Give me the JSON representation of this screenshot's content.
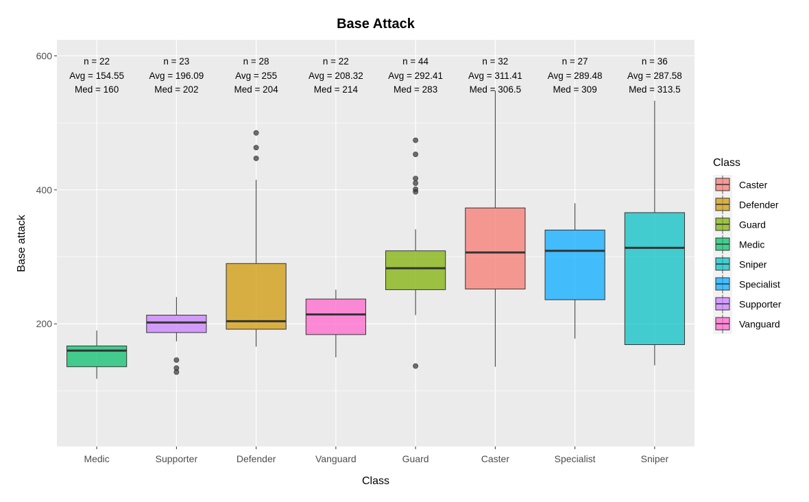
{
  "chart_data": {
    "type": "boxplot",
    "title": "Base Attack",
    "xlabel": "Class",
    "ylabel": "Base attack",
    "ylim": [
      17,
      624
    ],
    "y_ticks": [
      200,
      400,
      600
    ],
    "grid": true,
    "legend": {
      "title": "Class",
      "position": "right",
      "items": [
        "Caster",
        "Defender",
        "Guard",
        "Medic",
        "Sniper",
        "Specialist",
        "Supporter",
        "Vanguard"
      ]
    },
    "colors": {
      "Caster": "#F8766D",
      "Defender": "#CD9600",
      "Guard": "#7CAE00",
      "Medic": "#00BE67",
      "Sniper": "#00BFC4",
      "Specialist": "#00A9FF",
      "Supporter": "#C77CFF",
      "Vanguard": "#FF61CC"
    },
    "categories": [
      "Medic",
      "Supporter",
      "Defender",
      "Vanguard",
      "Guard",
      "Caster",
      "Specialist",
      "Sniper"
    ],
    "boxes": [
      {
        "class": "Medic",
        "n_label": "n = 22",
        "avg_label": "Avg = 154.55",
        "med_label": "Med = 160",
        "whisker_low": 118,
        "q1": 136,
        "median": 160,
        "q3": 167,
        "whisker_high": 190,
        "outliers": []
      },
      {
        "class": "Supporter",
        "n_label": "n = 23",
        "avg_label": "Avg = 196.09",
        "med_label": "Med = 202",
        "whisker_low": 174,
        "q1": 187,
        "median": 202,
        "q3": 213,
        "whisker_high": 240,
        "outliers": [
          146,
          134,
          128
        ]
      },
      {
        "class": "Defender",
        "n_label": "n = 28",
        "avg_label": "Avg = 255",
        "med_label": "Med = 204",
        "whisker_low": 166,
        "q1": 192,
        "median": 204,
        "q3": 290,
        "whisker_high": 415,
        "outliers": [
          485,
          463,
          447
        ]
      },
      {
        "class": "Vanguard",
        "n_label": "n = 22",
        "avg_label": "Avg = 208.32",
        "med_label": "Med = 214",
        "whisker_low": 150,
        "q1": 184,
        "median": 214,
        "q3": 237,
        "whisker_high": 251,
        "outliers": []
      },
      {
        "class": "Guard",
        "n_label": "n = 44",
        "avg_label": "Avg = 292.41",
        "med_label": "Med = 283",
        "whisker_low": 213,
        "q1": 251,
        "median": 283,
        "q3": 309,
        "whisker_high": 341,
        "outliers": [
          474,
          453,
          417,
          410,
          401,
          397,
          137
        ]
      },
      {
        "class": "Caster",
        "n_label": "n = 32",
        "avg_label": "Avg = 311.41",
        "med_label": "Med = 306.5",
        "whisker_low": 136,
        "q1": 252,
        "median": 306.5,
        "q3": 373,
        "whisker_high": 548,
        "outliers": []
      },
      {
        "class": "Specialist",
        "n_label": "n = 27",
        "avg_label": "Avg = 289.48",
        "med_label": "Med = 309",
        "whisker_low": 178,
        "q1": 236,
        "median": 309,
        "q3": 340,
        "whisker_high": 380,
        "outliers": []
      },
      {
        "class": "Sniper",
        "n_label": "n = 36",
        "avg_label": "Avg = 287.58",
        "med_label": "Med = 313.5",
        "whisker_low": 138,
        "q1": 169,
        "median": 313.5,
        "q3": 366,
        "whisker_high": 533,
        "outliers": []
      }
    ]
  }
}
